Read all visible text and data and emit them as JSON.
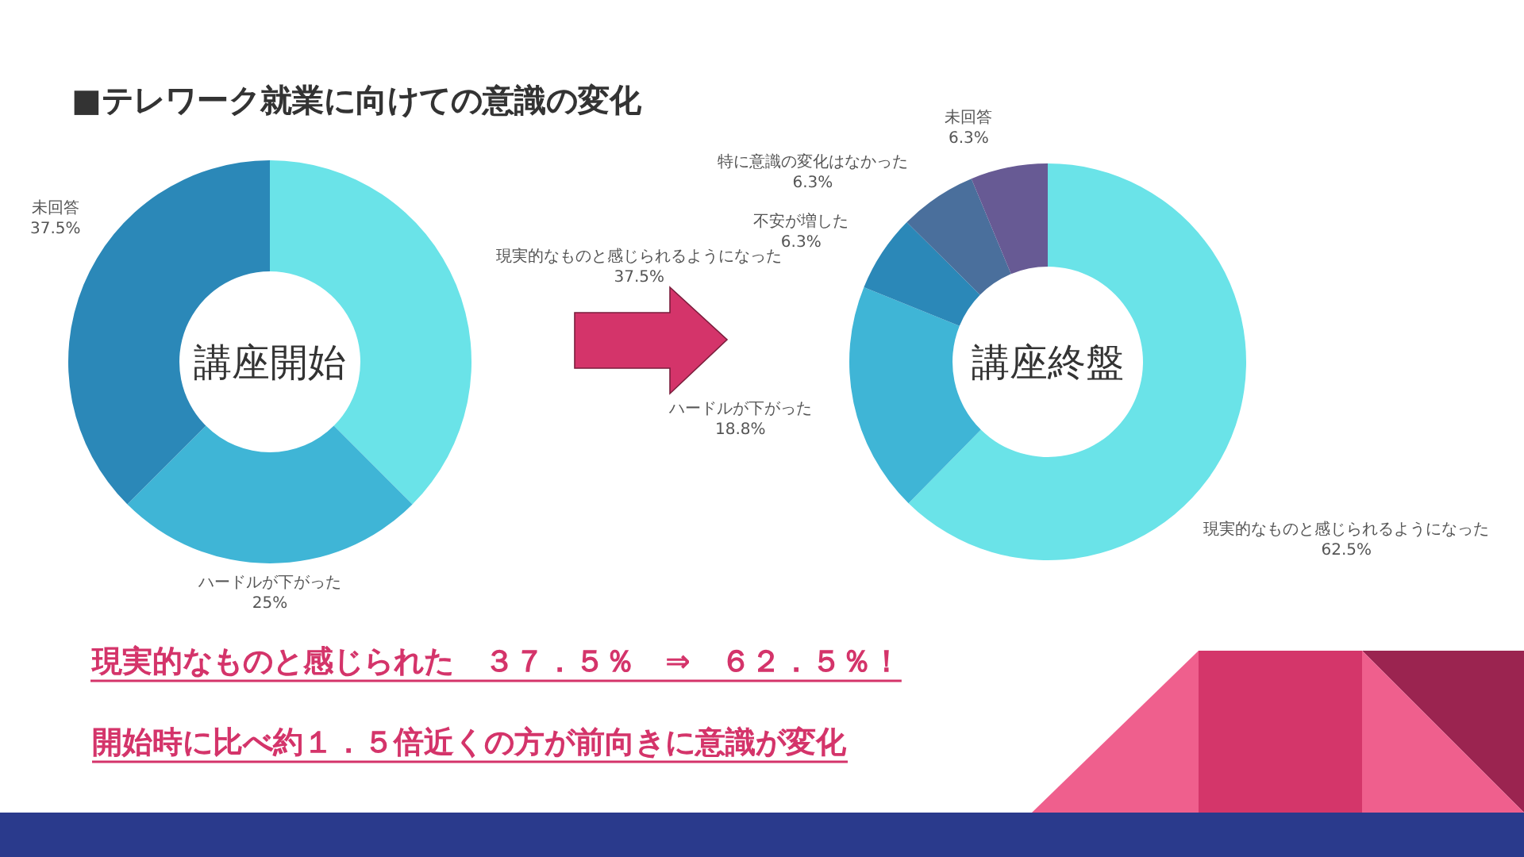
{
  "chart_data": [
    {
      "type": "donut",
      "title": "講座開始",
      "annotations": [
        "■テレワーク就業に向けての意識の変化"
      ],
      "categories": [
        "現実的なものと感じられるようになった",
        "ハードルが下がった",
        "未回答"
      ],
      "values": [
        37.5,
        25,
        37.5
      ],
      "value_labels": [
        "37.5%",
        "25%",
        "37.5%"
      ],
      "colors": [
        "#6ae3e8",
        "#3fb5d6",
        "#2b88b8"
      ]
    },
    {
      "type": "donut",
      "title": "講座終盤",
      "annotations": [
        "現実的なものと感じられた　３７．５％　⇒　６２．５％！",
        "開始時に比べ約１．５倍近くの方が前向きに意識が変化"
      ],
      "categories": [
        "現実的なものと感じられるようになった",
        "ハードルが下がった",
        "不安が増した",
        "特に意識の変化はなかった",
        "未回答"
      ],
      "values": [
        62.5,
        18.8,
        6.3,
        6.3,
        6.3
      ],
      "value_labels": [
        "62.5%",
        "18.8%",
        "6.3%",
        "6.3%",
        "6.3%"
      ],
      "colors": [
        "#6ae3e8",
        "#3fb5d6",
        "#2b88b8",
        "#4a6f9c",
        "#675a94"
      ]
    }
  ]
}
